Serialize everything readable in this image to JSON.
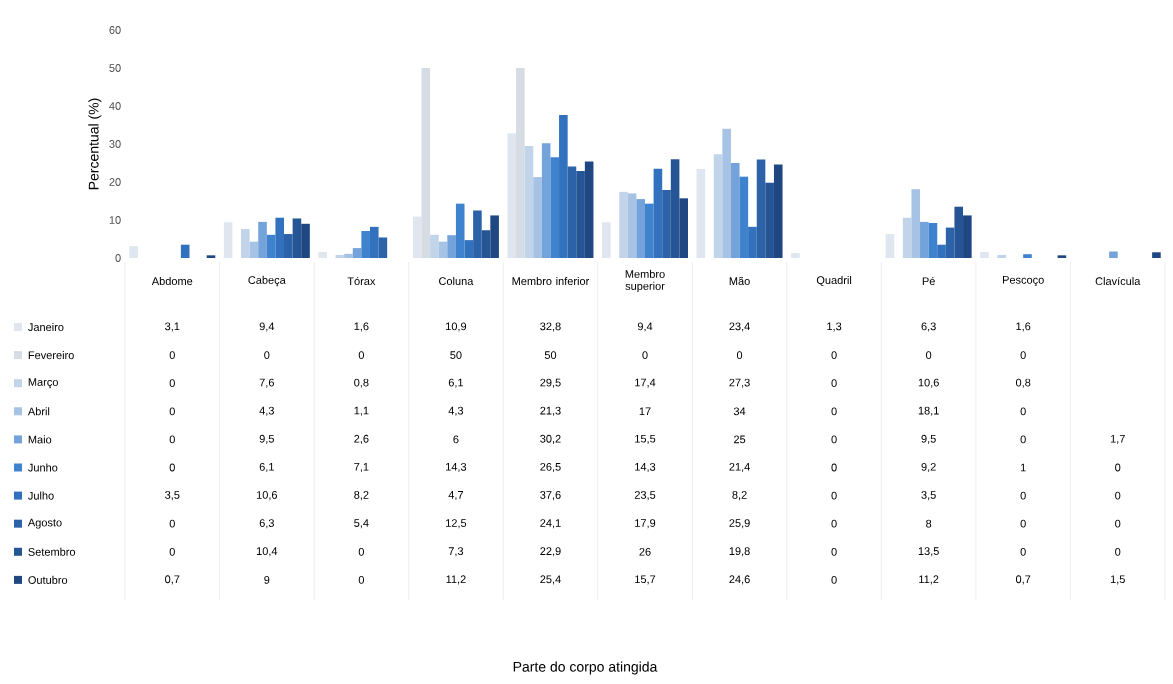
{
  "chart_data": {
    "type": "bar",
    "annotations": [
      "Parte do corpo atingida"
    ],
    "ylabel": "Percentual (%)",
    "categories": [
      "Abdome",
      "Cabeça",
      "Tórax",
      "Coluna",
      "Membro inferior",
      "Membro superior",
      "Mão",
      "Quadril",
      "Pé",
      "Pescoço",
      "Clavícula"
    ],
    "ylim": [
      0,
      60
    ],
    "legend": "bottom left",
    "yticks": [
      0,
      10,
      20,
      30,
      40,
      50,
      60
    ],
    "series": [
      {
        "name": "Janeiro",
        "color": "#dfe6ef",
        "values": [
          3.1,
          9.4,
          1.6,
          10.9,
          32.8,
          9.4,
          23.4,
          1.3,
          6.3,
          1.6,
          null
        ],
        "value_labels": [
          "3,1",
          "9,4",
          "1,6",
          "10,9",
          "32,8",
          "9,4",
          "23,4",
          "1,3",
          "6,3",
          "1,6",
          null
        ]
      },
      {
        "name": "Fevereiro",
        "color": "#d6dce4",
        "values": [
          0,
          0,
          0,
          50,
          50,
          0,
          0,
          0,
          0,
          0,
          null
        ],
        "value_labels": [
          "0",
          "0",
          "0",
          "50",
          "50",
          "0",
          "0",
          "0",
          "0",
          "0",
          null
        ]
      },
      {
        "name": "Março",
        "color": "#c2d4ea",
        "values": [
          0,
          7.6,
          0.8,
          6.1,
          29.5,
          17.4,
          27.3,
          0,
          10.6,
          0.8,
          null
        ],
        "value_labels": [
          "0",
          "7,6",
          "0,8",
          "6,1",
          "29,5",
          "17,4",
          "27,3",
          "0",
          "10,6",
          "0,8",
          null
        ]
      },
      {
        "name": "Abril",
        "color": "#a6c3e5",
        "values": [
          0,
          4.3,
          1.1,
          4.3,
          21.3,
          17,
          34,
          0,
          18.1,
          0,
          null
        ],
        "value_labels": [
          "0",
          "4,3",
          "1,1",
          "4,3",
          "21,3",
          "17",
          "34",
          "0",
          "18,1",
          "0",
          null
        ]
      },
      {
        "name": "Maio",
        "color": "#73a3da",
        "values": [
          0,
          9.5,
          2.6,
          6,
          30.2,
          15.5,
          25,
          0,
          9.5,
          0,
          1.7
        ],
        "value_labels": [
          "0",
          "9,5",
          "2,6",
          "6",
          "30,2",
          "15,5",
          "25",
          "0",
          "9,5",
          "0",
          "1,7"
        ]
      },
      {
        "name": "Junho",
        "color": "#3f83cf",
        "values": [
          0,
          6.1,
          7.1,
          14.3,
          26.5,
          14.3,
          21.4,
          0,
          9.2,
          1,
          0
        ],
        "value_labels": [
          "0",
          "6,1",
          "7,1",
          "14,3",
          "26,5",
          "14,3",
          "21,4",
          "0",
          "9,2",
          "1",
          "0"
        ]
      },
      {
        "name": "Julho",
        "color": "#3171bd",
        "values": [
          3.5,
          10.6,
          8.2,
          4.7,
          37.6,
          23.5,
          8.2,
          0,
          3.5,
          0,
          0
        ],
        "value_labels": [
          "3,5",
          "10,6",
          "8,2",
          "4,7",
          "37,6",
          "23,5",
          "8,2",
          "0",
          "3,5",
          "0",
          "0"
        ]
      },
      {
        "name": "Agosto",
        "color": "#2b62a8",
        "values": [
          0,
          6.3,
          5.4,
          12.5,
          24.1,
          17.9,
          25.9,
          0,
          8,
          0,
          0
        ],
        "value_labels": [
          "0",
          "6,3",
          "5,4",
          "12,5",
          "24,1",
          "17,9",
          "25,9",
          "0",
          "8",
          "0",
          "0"
        ]
      },
      {
        "name": "Setembro",
        "color": "#265595",
        "values": [
          0,
          10.4,
          0,
          7.3,
          22.9,
          26,
          19.8,
          0,
          13.5,
          0,
          0
        ],
        "value_labels": [
          "0",
          "10,4",
          "0",
          "7,3",
          "22,9",
          "26",
          "19,8",
          "0",
          "13,5",
          "0",
          "0"
        ]
      },
      {
        "name": "Outubro",
        "color": "#1f4883",
        "values": [
          0.7,
          9,
          0,
          11.2,
          25.4,
          15.7,
          24.6,
          0,
          11.2,
          0.7,
          1.5
        ],
        "value_labels": [
          "0,7",
          "9",
          "0",
          "11,2",
          "25,4",
          "15,7",
          "24,6",
          "0",
          "11,2",
          "0,7",
          "1,5"
        ]
      }
    ]
  }
}
